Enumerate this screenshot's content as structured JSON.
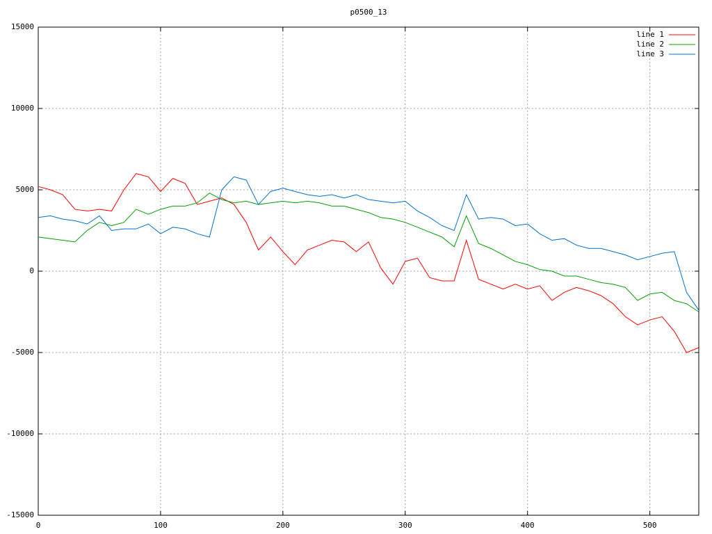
{
  "chart_data": {
    "type": "line",
    "title": "p0500_13",
    "x": [
      0,
      10,
      20,
      30,
      40,
      50,
      60,
      70,
      80,
      90,
      100,
      110,
      120,
      130,
      140,
      150,
      160,
      170,
      180,
      190,
      200,
      210,
      220,
      230,
      240,
      250,
      260,
      270,
      280,
      290,
      300,
      310,
      320,
      330,
      340,
      350,
      360,
      370,
      380,
      390,
      400,
      410,
      420,
      430,
      440,
      450,
      460,
      470,
      480,
      490,
      500,
      510,
      520,
      530,
      540
    ],
    "series": [
      {
        "name": "line 1",
        "color": "#ff0000",
        "values": [
          5200,
          5000,
          4700,
          3800,
          3700,
          3800,
          3700,
          5000,
          6000,
          5800,
          4900,
          5700,
          5400,
          4100,
          4300,
          4500,
          4100,
          3000,
          1300,
          2100,
          1200,
          400,
          1300,
          1600,
          1900,
          1800,
          1200,
          1800,
          200,
          -800,
          600,
          800,
          -400,
          -600,
          -600,
          1900,
          -500,
          -800,
          -1100,
          -800,
          -1100,
          -900,
          -1800,
          -1300,
          -1000,
          -1200,
          -1500,
          -2000,
          -2800,
          -3300,
          -3000,
          -2800,
          -3700,
          -5000,
          -4700
        ]
      },
      {
        "name": "line 2",
        "color": "#00a000",
        "values": [
          2100,
          2000,
          1900,
          1800,
          2500,
          3000,
          2800,
          3000,
          3800,
          3500,
          3800,
          4000,
          4000,
          4200,
          4800,
          4400,
          4200,
          4300,
          4100,
          4200,
          4300,
          4200,
          4300,
          4200,
          4000,
          4000,
          3800,
          3600,
          3300,
          3200,
          3000,
          2700,
          2400,
          2100,
          1500,
          3400,
          1700,
          1400,
          1000,
          600,
          400,
          100,
          0,
          -300,
          -300,
          -500,
          -700,
          -800,
          -1000,
          -1800,
          -1400,
          -1300,
          -1800,
          -2000,
          -2500
        ]
      },
      {
        "name": "line 3",
        "color": "#0070d0",
        "values": [
          3300,
          3400,
          3200,
          3100,
          2900,
          3400,
          2500,
          2600,
          2600,
          2900,
          2300,
          2700,
          2600,
          2300,
          2100,
          5000,
          5800,
          5600,
          4100,
          4900,
          5100,
          4900,
          4700,
          4600,
          4700,
          4500,
          4700,
          4400,
          4300,
          4200,
          4300,
          3700,
          3300,
          2800,
          2500,
          4700,
          3200,
          3300,
          3200,
          2800,
          2900,
          2300,
          1900,
          2000,
          1600,
          1400,
          1400,
          1200,
          1000,
          700,
          900,
          1100,
          1200,
          -1300,
          -2400
        ]
      }
    ],
    "xlim": [
      0,
      540
    ],
    "ylim": [
      -15000,
      15000
    ],
    "xticks": [
      0,
      100,
      200,
      300,
      400,
      500
    ],
    "yticks": [
      -15000,
      -10000,
      -5000,
      0,
      5000,
      10000,
      15000
    ],
    "grid": true,
    "legend": "top-right"
  }
}
